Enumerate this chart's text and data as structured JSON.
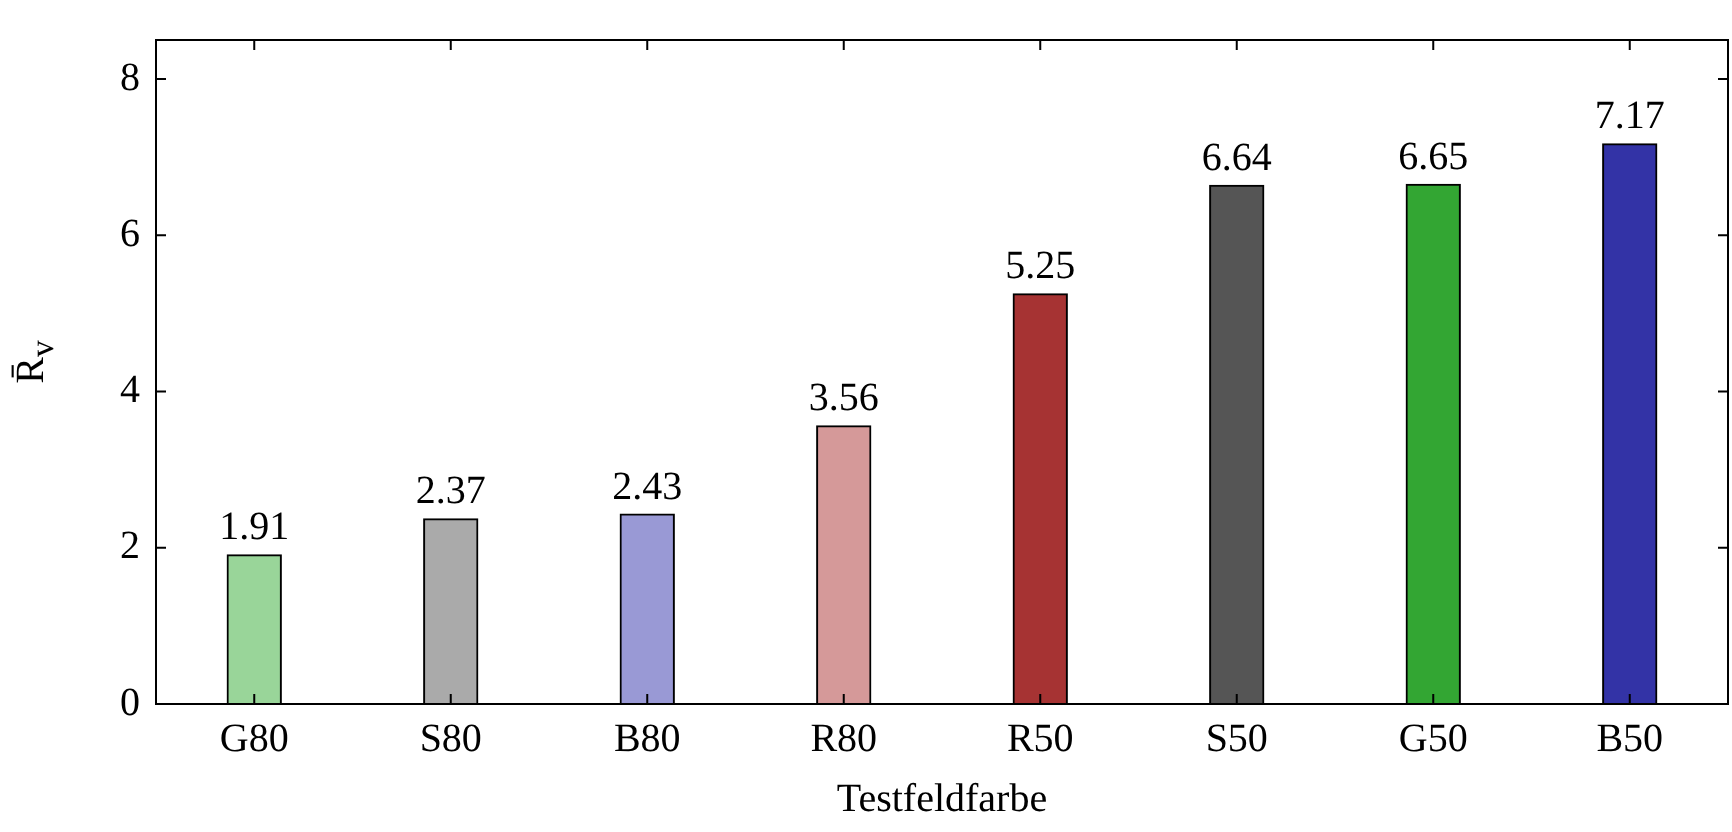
{
  "chart_data": {
    "type": "bar",
    "xlabel": "Testfeldfarbe",
    "ylabel": "R̄$_{v}$",
    "categories": [
      "G80",
      "S80",
      "B80",
      "R80",
      "R50",
      "S50",
      "G50",
      "B50"
    ],
    "values": [
      1.91,
      2.37,
      2.43,
      3.56,
      5.25,
      6.64,
      6.65,
      7.17
    ],
    "colors": [
      "#99d599",
      "#aaaaaa",
      "#9999d5",
      "#d59999",
      "#a63333",
      "#555555",
      "#33a633",
      "#3333a6"
    ],
    "ylim": [
      0,
      8.5
    ],
    "yticks": [
      0,
      2,
      4,
      6,
      8
    ],
    "grid": false,
    "legend": false,
    "data_labels": true
  }
}
